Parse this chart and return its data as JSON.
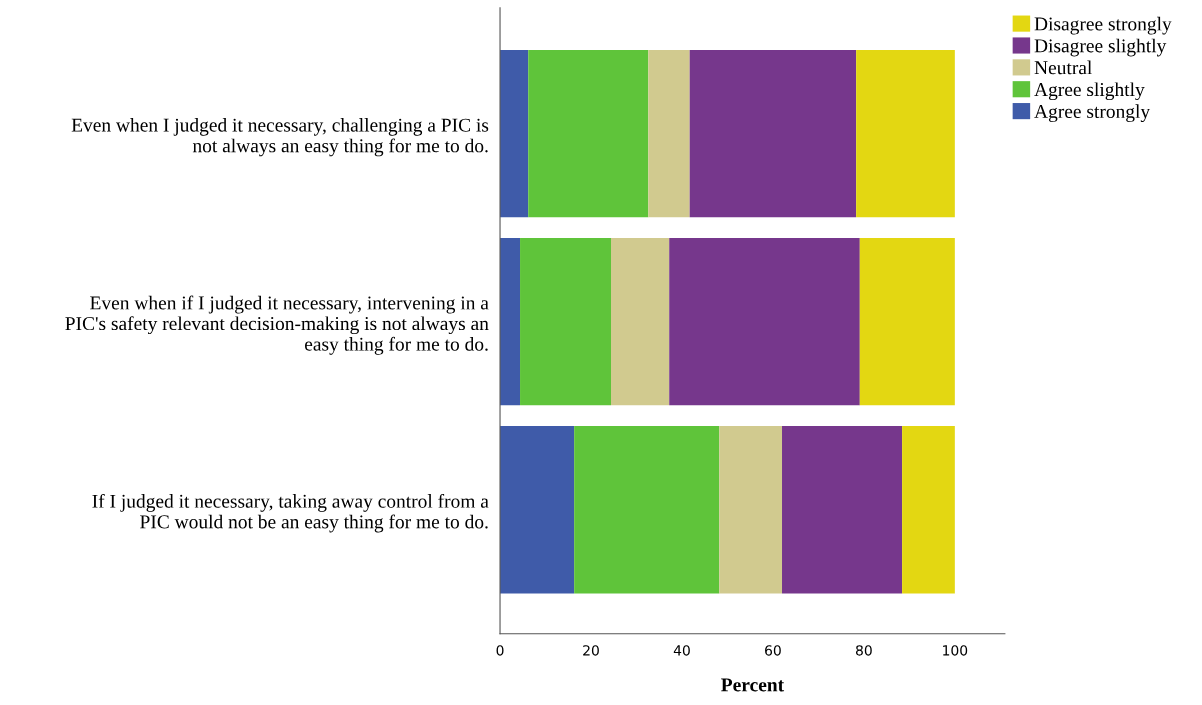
{
  "chart_data": {
    "type": "bar",
    "orientation": "horizontal",
    "stacked": true,
    "xlabel": "Percent",
    "categories": [
      "Even when I judged it necessary, challenging a PIC is\nnot always an easy thing for me to do.",
      "Even when if I judged it necessary, intervening in a\nPIC's safety relevant decision-making is not always an\neasy thing for me to do.",
      "If I judged it necessary, taking away control from a\nPIC would not be an easy thing for me to do."
    ],
    "series": [
      {
        "name": "Agree strongly",
        "color": "#3f5ba9",
        "values": [
          6.2,
          4.4,
          16.3
        ]
      },
      {
        "name": "Agree slightly",
        "color": "#5fc43a",
        "values": [
          26.4,
          20.0,
          31.9
        ]
      },
      {
        "name": "Neutral",
        "color": "#d1ca8f",
        "values": [
          9.1,
          12.8,
          13.8
        ]
      },
      {
        "name": "Disagree slightly",
        "color": "#76378c",
        "values": [
          36.6,
          41.9,
          26.4
        ]
      },
      {
        "name": "Disagree strongly",
        "color": "#e3d712",
        "values": [
          21.7,
          20.9,
          11.6
        ]
      }
    ],
    "xlim": [
      0,
      111
    ],
    "xticks": [
      0,
      20,
      40,
      60,
      80,
      100
    ],
    "grid": false,
    "legend": "top right"
  }
}
